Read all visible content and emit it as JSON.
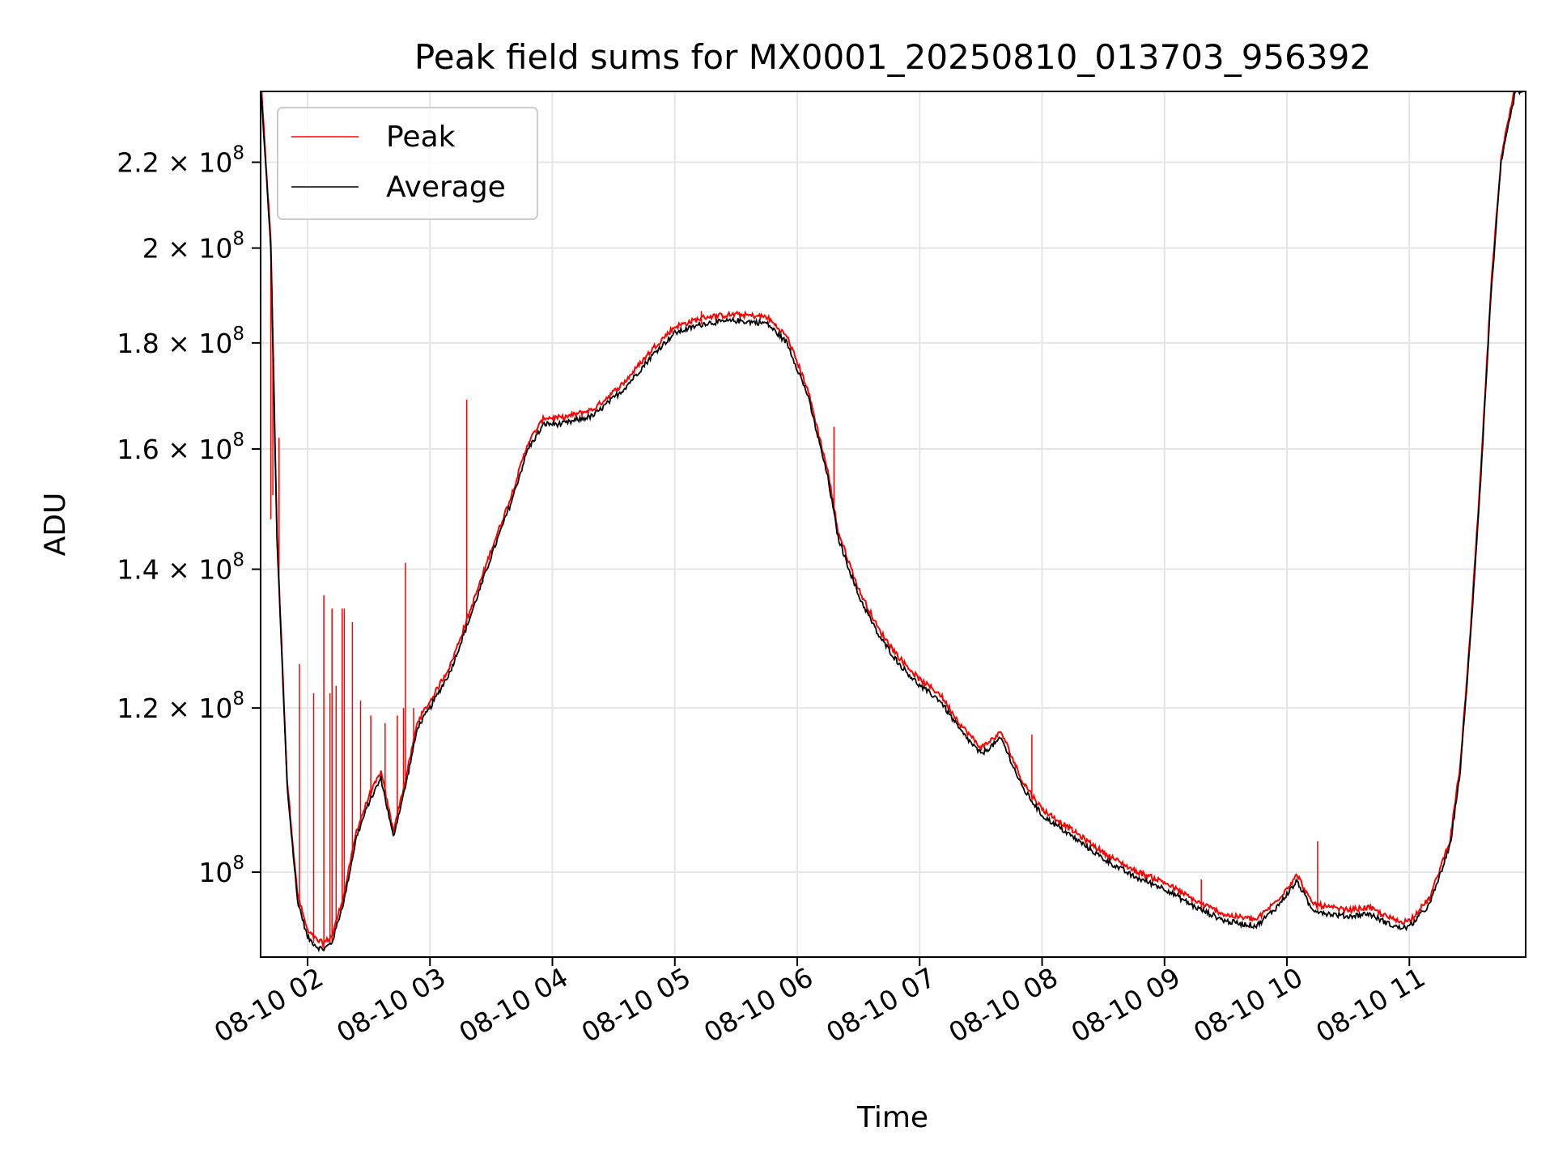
{
  "chart_data": {
    "type": "line",
    "title": "Peak field sums for MX0001_20250810_013703_956392",
    "xlabel": "Time",
    "ylabel": "ADU",
    "y_scale": "log",
    "ylim": [
      91000000,
      238000000
    ],
    "xlim": [
      "08-10 01:37",
      "08-10 11:57"
    ],
    "grid": true,
    "legend_position": "top-left",
    "x_ticks": [
      "08-10 02",
      "08-10 03",
      "08-10 04",
      "08-10 05",
      "08-10 06",
      "08-10 07",
      "08-10 08",
      "08-10 09",
      "08-10 10",
      "08-10 11"
    ],
    "x_tick_values": [
      "08-10 02:00",
      "08-10 03:00",
      "08-10 04:00",
      "08-10 05:00",
      "08-10 06:00",
      "08-10 07:00",
      "08-10 08:00",
      "08-10 09:00",
      "08-10 10:00",
      "08-10 11:00"
    ],
    "y_ticks": [
      {
        "value": 100000000,
        "mant": "",
        "exp": "8",
        "label": "10^8"
      },
      {
        "value": 120000000,
        "mant": "1.2 × 10",
        "exp": "8",
        "label": "1.2 × 10^8"
      },
      {
        "value": 140000000,
        "mant": "1.4 × 10",
        "exp": "8",
        "label": "1.4 × 10^8"
      },
      {
        "value": 160000000,
        "mant": "1.6 × 10",
        "exp": "8",
        "label": "1.6 × 10^8"
      },
      {
        "value": 180000000,
        "mant": "1.8 × 10",
        "exp": "8",
        "label": "1.8 × 10^8"
      },
      {
        "value": 200000000,
        "mant": "2 × 10",
        "exp": "8",
        "label": "2 × 10^8"
      },
      {
        "value": 220000000,
        "mant": "2.2 × 10",
        "exp": "8",
        "label": "2.2 × 10^8"
      }
    ],
    "series": [
      {
        "name": "Average",
        "color": "#000000",
        "x": [
          "08-10 01:37",
          "08-10 01:42",
          "08-10 01:45",
          "08-10 01:50",
          "08-10 01:55",
          "08-10 02:00",
          "08-10 02:05",
          "08-10 02:08",
          "08-10 02:12",
          "08-10 02:18",
          "08-10 02:24",
          "08-10 02:30",
          "08-10 02:36",
          "08-10 02:42",
          "08-10 02:48",
          "08-10 02:54",
          "08-10 03:00",
          "08-10 03:10",
          "08-10 03:20",
          "08-10 03:30",
          "08-10 03:40",
          "08-10 03:48",
          "08-10 03:56",
          "08-10 04:05",
          "08-10 04:20",
          "08-10 04:35",
          "08-10 04:50",
          "08-10 05:00",
          "08-10 05:15",
          "08-10 05:30",
          "08-10 05:45",
          "08-10 05:55",
          "08-10 06:05",
          "08-10 06:15",
          "08-10 06:20",
          "08-10 06:30",
          "08-10 06:40",
          "08-10 06:50",
          "08-10 07:00",
          "08-10 07:10",
          "08-10 07:20",
          "08-10 07:30",
          "08-10 07:40",
          "08-10 07:45",
          "08-10 07:50",
          "08-10 08:00",
          "08-10 08:15",
          "08-10 08:30",
          "08-10 08:45",
          "08-10 09:00",
          "08-10 09:15",
          "08-10 09:30",
          "08-10 09:45",
          "08-10 09:55",
          "08-10 10:05",
          "08-10 10:12",
          "08-10 10:20",
          "08-10 10:30",
          "08-10 10:40",
          "08-10 10:50",
          "08-10 10:55",
          "08-10 11:00",
          "08-10 11:10",
          "08-10 11:20",
          "08-10 11:25",
          "08-10 11:30",
          "08-10 11:35",
          "08-10 11:40",
          "08-10 11:45",
          "08-10 11:52",
          "08-10 11:57"
        ],
        "values": [
          240000000,
          200000000,
          145000000,
          110000000,
          97000000,
          93000000,
          92000000,
          91800000,
          92500000,
          97000000,
          104000000,
          108000000,
          111000000,
          104000000,
          110000000,
          117500000,
          120000000,
          125000000,
          133000000,
          142000000,
          151000000,
          160000000,
          164500000,
          164500000,
          166000000,
          171000000,
          178000000,
          182000000,
          184000000,
          184500000,
          184000000,
          180000000,
          170000000,
          155000000,
          145000000,
          136000000,
          130000000,
          126000000,
          123000000,
          121000000,
          117000000,
          114000000,
          116000000,
          113000000,
          110000000,
          106500000,
          104000000,
          101500000,
          99500000,
          98200000,
          96200000,
          94700000,
          94200000,
          96200000,
          99000000,
          96000000,
          95500000,
          95200000,
          95500000,
          94400000,
          94000000,
          94100000,
          96500000,
          103000000,
          112000000,
          130000000,
          155000000,
          190000000,
          220000000,
          238000000,
          238000000
        ]
      },
      {
        "name": "Peak",
        "color": "#ff0000",
        "spikes": [
          {
            "x": "08-10 01:42",
            "value": 148000000
          },
          {
            "x": "08-10 01:43",
            "value": 152000000
          },
          {
            "x": "08-10 01:46",
            "value": 162000000
          },
          {
            "x": "08-10 01:56",
            "value": 126000000
          },
          {
            "x": "08-10 02:03",
            "value": 122000000
          },
          {
            "x": "08-10 02:08",
            "value": 136000000
          },
          {
            "x": "08-10 02:11",
            "value": 122000000
          },
          {
            "x": "08-10 02:12",
            "value": 134000000
          },
          {
            "x": "08-10 02:14",
            "value": 123000000
          },
          {
            "x": "08-10 02:17",
            "value": 134000000
          },
          {
            "x": "08-10 02:18",
            "value": 134000000
          },
          {
            "x": "08-10 02:22",
            "value": 132000000
          },
          {
            "x": "08-10 02:26",
            "value": 121000000
          },
          {
            "x": "08-10 02:31",
            "value": 119000000
          },
          {
            "x": "08-10 02:38",
            "value": 118000000
          },
          {
            "x": "08-10 02:44",
            "value": 119000000
          },
          {
            "x": "08-10 02:47",
            "value": 120000000
          },
          {
            "x": "08-10 02:48",
            "value": 141000000
          },
          {
            "x": "08-10 02:52",
            "value": 120000000
          },
          {
            "x": "08-10 03:02",
            "value": 121500000
          },
          {
            "x": "08-10 03:18",
            "value": 169000000
          },
          {
            "x": "08-10 03:26",
            "value": 138000000
          },
          {
            "x": "08-10 05:13",
            "value": 186500000
          },
          {
            "x": "08-10 06:18",
            "value": 164000000
          },
          {
            "x": "08-10 07:55",
            "value": 116500000
          },
          {
            "x": "08-10 08:10",
            "value": 105000000
          },
          {
            "x": "08-10 09:18",
            "value": 99200000
          },
          {
            "x": "08-10 10:15",
            "value": 103500000
          }
        ]
      }
    ]
  }
}
